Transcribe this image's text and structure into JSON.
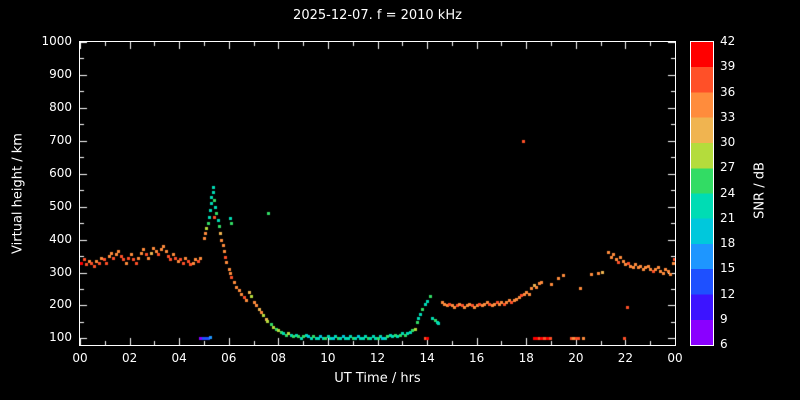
{
  "title": "2025-12-07. f = 2010 kHz",
  "x_axis": {
    "label": "UT Time / hrs",
    "hours": [
      0,
      2,
      4,
      6,
      8,
      10,
      12,
      14,
      16,
      18,
      20,
      22,
      24
    ],
    "tick_labels": [
      "00",
      "02",
      "04",
      "06",
      "08",
      "10",
      "12",
      "14",
      "16",
      "18",
      "20",
      "22",
      "00"
    ],
    "range": [
      0,
      24
    ]
  },
  "y_axis": {
    "label": "Virtual height / km",
    "tick_values": [
      100,
      200,
      300,
      400,
      500,
      600,
      700,
      800,
      900,
      1000
    ],
    "range": [
      80,
      1000
    ]
  },
  "colorbar": {
    "label": "SNR / dB",
    "levels": [
      6,
      9,
      12,
      15,
      18,
      21,
      24,
      27,
      30,
      33,
      36,
      39,
      42
    ],
    "colors": [
      "#8a00ff",
      "#3c14ff",
      "#1e50ff",
      "#1e96ff",
      "#00c8dc",
      "#00dcb4",
      "#32dc64",
      "#b4dc3c",
      "#f0b450",
      "#ff8c3c",
      "#ff5028",
      "#ff0000"
    ]
  },
  "chart_data": {
    "type": "scatter",
    "title": "2025-12-07. f = 2010 kHz",
    "xlabel": "UT Time / hrs",
    "ylabel": "Virtual height / km",
    "xlim": [
      0,
      24
    ],
    "ylim": [
      80,
      1000
    ],
    "legend": "colorbar SNR / dB, 6 to 42, right side",
    "grid": false,
    "point_format": "[ut_hours, virtual_height_km, snr_db]",
    "points": [
      [
        0.05,
        330,
        39
      ],
      [
        0.15,
        340,
        37
      ],
      [
        0.25,
        325,
        37
      ],
      [
        0.35,
        335,
        34
      ],
      [
        0.45,
        330,
        36
      ],
      [
        0.55,
        320,
        38
      ],
      [
        0.65,
        335,
        35
      ],
      [
        0.75,
        330,
        36
      ],
      [
        0.85,
        345,
        34
      ],
      [
        0.95,
        340,
        36
      ],
      [
        1.05,
        330,
        37
      ],
      [
        1.15,
        350,
        35
      ],
      [
        1.25,
        360,
        33
      ],
      [
        1.35,
        345,
        36
      ],
      [
        1.45,
        355,
        34
      ],
      [
        1.55,
        365,
        35
      ],
      [
        1.65,
        350,
        37
      ],
      [
        1.75,
        340,
        36
      ],
      [
        1.85,
        330,
        35
      ],
      [
        1.95,
        345,
        37
      ],
      [
        2.05,
        355,
        34
      ],
      [
        2.15,
        340,
        36
      ],
      [
        2.25,
        330,
        38
      ],
      [
        2.35,
        345,
        35
      ],
      [
        2.45,
        360,
        33
      ],
      [
        2.55,
        370,
        34
      ],
      [
        2.65,
        355,
        36
      ],
      [
        2.75,
        345,
        35
      ],
      [
        2.85,
        360,
        30
      ],
      [
        2.95,
        375,
        33
      ],
      [
        3.05,
        365,
        35
      ],
      [
        3.15,
        355,
        36
      ],
      [
        3.25,
        370,
        34
      ],
      [
        3.35,
        380,
        33
      ],
      [
        3.45,
        365,
        35
      ],
      [
        3.55,
        350,
        37
      ],
      [
        3.65,
        340,
        36
      ],
      [
        3.75,
        355,
        34
      ],
      [
        3.85,
        345,
        36
      ],
      [
        3.95,
        335,
        35
      ],
      [
        4.05,
        340,
        37
      ],
      [
        4.15,
        330,
        36
      ],
      [
        4.25,
        345,
        34
      ],
      [
        4.35,
        335,
        36
      ],
      [
        4.45,
        325,
        38
      ],
      [
        4.55,
        330,
        35
      ],
      [
        4.65,
        340,
        33
      ],
      [
        4.75,
        335,
        36
      ],
      [
        4.85,
        345,
        34
      ],
      [
        4.85,
        100,
        8
      ],
      [
        4.95,
        100,
        12
      ],
      [
        5.05,
        100,
        14
      ],
      [
        5.15,
        100,
        12
      ],
      [
        5.25,
        105,
        15
      ],
      [
        5.0,
        405,
        33
      ],
      [
        5.05,
        420,
        34
      ],
      [
        5.1,
        435,
        27
      ],
      [
        5.15,
        450,
        24
      ],
      [
        5.2,
        470,
        22
      ],
      [
        5.25,
        490,
        21
      ],
      [
        5.3,
        510,
        23
      ],
      [
        5.3,
        530,
        21
      ],
      [
        5.35,
        545,
        22
      ],
      [
        5.38,
        560,
        21
      ],
      [
        5.4,
        520,
        24
      ],
      [
        5.4,
        470,
        37
      ],
      [
        5.45,
        500,
        22
      ],
      [
        5.5,
        480,
        25
      ],
      [
        5.55,
        460,
        23
      ],
      [
        5.6,
        440,
        26
      ],
      [
        5.65,
        420,
        30
      ],
      [
        6.05,
        465,
        22
      ],
      [
        6.1,
        450,
        24
      ],
      [
        7.6,
        480,
        24
      ],
      [
        5.7,
        400,
        34
      ],
      [
        5.75,
        385,
        35
      ],
      [
        5.8,
        365,
        33
      ],
      [
        5.85,
        348,
        36
      ],
      [
        5.9,
        332,
        34
      ],
      [
        6.0,
        312,
        35
      ],
      [
        6.05,
        298,
        33
      ],
      [
        6.1,
        286,
        36
      ],
      [
        6.2,
        272,
        34
      ],
      [
        6.3,
        256,
        35
      ],
      [
        6.4,
        246,
        33
      ],
      [
        6.5,
        236,
        34
      ],
      [
        6.6,
        226,
        36
      ],
      [
        6.7,
        216,
        33
      ],
      [
        6.8,
        242,
        30
      ],
      [
        6.9,
        230,
        27
      ],
      [
        7.0,
        212,
        33
      ],
      [
        7.1,
        200,
        34
      ],
      [
        7.2,
        190,
        30
      ],
      [
        7.3,
        180,
        33
      ],
      [
        7.4,
        170,
        27
      ],
      [
        7.5,
        160,
        30
      ],
      [
        7.55,
        152,
        27
      ],
      [
        7.7,
        145,
        24
      ],
      [
        7.8,
        136,
        27
      ],
      [
        7.9,
        130,
        24
      ],
      [
        8.0,
        126,
        27
      ],
      [
        8.1,
        120,
        24
      ],
      [
        8.2,
        116,
        21
      ],
      [
        8.3,
        110,
        24
      ],
      [
        8.4,
        116,
        27
      ],
      [
        8.5,
        110,
        22
      ],
      [
        8.6,
        106,
        24
      ],
      [
        8.7,
        110,
        21
      ],
      [
        8.8,
        106,
        24
      ],
      [
        8.9,
        100,
        22
      ],
      [
        9.0,
        106,
        24
      ],
      [
        9.1,
        110,
        21
      ],
      [
        9.2,
        106,
        18
      ],
      [
        9.3,
        100,
        21
      ],
      [
        9.4,
        106,
        24
      ],
      [
        9.5,
        100,
        22
      ],
      [
        9.6,
        100,
        21
      ],
      [
        9.7,
        106,
        18
      ],
      [
        9.8,
        100,
        21
      ],
      [
        9.9,
        100,
        24
      ],
      [
        10.0,
        106,
        21
      ],
      [
        10.1,
        100,
        22
      ],
      [
        10.2,
        100,
        18
      ],
      [
        10.3,
        106,
        21
      ],
      [
        10.4,
        100,
        24
      ],
      [
        10.5,
        100,
        21
      ],
      [
        10.6,
        106,
        18
      ],
      [
        10.7,
        100,
        21
      ],
      [
        10.8,
        100,
        22
      ],
      [
        10.9,
        106,
        21
      ],
      [
        11.0,
        100,
        24
      ],
      [
        11.1,
        100,
        21
      ],
      [
        11.2,
        106,
        18
      ],
      [
        11.3,
        100,
        21
      ],
      [
        11.4,
        100,
        22
      ],
      [
        11.5,
        106,
        21
      ],
      [
        11.6,
        100,
        24
      ],
      [
        11.7,
        100,
        21
      ],
      [
        11.8,
        106,
        22
      ],
      [
        11.9,
        100,
        21
      ],
      [
        12.0,
        100,
        24
      ],
      [
        12.1,
        106,
        21
      ],
      [
        12.2,
        100,
        18
      ],
      [
        12.3,
        100,
        21
      ],
      [
        12.4,
        106,
        24
      ],
      [
        12.5,
        110,
        21
      ],
      [
        12.6,
        106,
        22
      ],
      [
        12.7,
        110,
        24
      ],
      [
        12.8,
        106,
        21
      ],
      [
        12.9,
        110,
        24
      ],
      [
        13.0,
        116,
        21
      ],
      [
        13.1,
        110,
        24
      ],
      [
        13.2,
        116,
        22
      ],
      [
        13.3,
        120,
        21
      ],
      [
        13.4,
        126,
        24
      ],
      [
        13.5,
        130,
        27
      ],
      [
        13.6,
        150,
        24
      ],
      [
        13.65,
        162,
        22
      ],
      [
        13.7,
        175,
        21
      ],
      [
        13.8,
        190,
        24
      ],
      [
        13.9,
        205,
        22
      ],
      [
        14.0,
        215,
        21
      ],
      [
        14.1,
        228,
        24
      ],
      [
        14.2,
        162,
        21
      ],
      [
        14.3,
        156,
        24
      ],
      [
        14.4,
        150,
        22
      ],
      [
        14.45,
        146,
        21
      ],
      [
        13.9,
        100,
        38
      ],
      [
        14.0,
        100,
        39
      ],
      [
        14.6,
        210,
        33
      ],
      [
        14.7,
        205,
        35
      ],
      [
        14.8,
        200,
        34
      ],
      [
        14.9,
        206,
        36
      ],
      [
        15.0,
        200,
        34
      ],
      [
        15.1,
        196,
        35
      ],
      [
        15.2,
        200,
        37
      ],
      [
        15.3,
        206,
        34
      ],
      [
        15.4,
        200,
        36
      ],
      [
        15.5,
        196,
        34
      ],
      [
        15.6,
        200,
        35
      ],
      [
        15.7,
        206,
        33
      ],
      [
        15.8,
        200,
        36
      ],
      [
        15.9,
        196,
        34
      ],
      [
        16.0,
        200,
        35
      ],
      [
        16.1,
        206,
        36
      ],
      [
        16.2,
        200,
        34
      ],
      [
        16.3,
        206,
        35
      ],
      [
        16.4,
        210,
        33
      ],
      [
        16.5,
        206,
        36
      ],
      [
        16.6,
        200,
        34
      ],
      [
        16.7,
        206,
        35
      ],
      [
        16.8,
        210,
        36
      ],
      [
        16.9,
        206,
        34
      ],
      [
        17.0,
        210,
        35
      ],
      [
        17.1,
        206,
        37
      ],
      [
        17.2,
        210,
        34
      ],
      [
        17.3,
        216,
        35
      ],
      [
        17.4,
        210,
        36
      ],
      [
        17.5,
        216,
        34
      ],
      [
        17.6,
        220,
        35
      ],
      [
        17.7,
        226,
        33
      ],
      [
        17.8,
        232,
        36
      ],
      [
        17.9,
        236,
        34
      ],
      [
        17.85,
        700,
        36
      ],
      [
        18.0,
        242,
        35
      ],
      [
        18.1,
        236,
        33
      ],
      [
        18.2,
        252,
        34
      ],
      [
        18.3,
        262,
        32
      ],
      [
        18.4,
        256,
        35
      ],
      [
        18.5,
        268,
        33
      ],
      [
        18.6,
        272,
        34
      ],
      [
        19.0,
        265,
        34
      ],
      [
        19.3,
        282,
        33
      ],
      [
        19.5,
        292,
        35
      ],
      [
        18.3,
        100,
        39
      ],
      [
        18.4,
        100,
        40
      ],
      [
        18.5,
        100,
        38
      ],
      [
        18.6,
        100,
        39
      ],
      [
        18.7,
        100,
        37
      ],
      [
        18.85,
        100,
        39
      ],
      [
        18.95,
        100,
        38
      ],
      [
        19.8,
        100,
        36
      ],
      [
        19.9,
        100,
        35
      ],
      [
        20.0,
        100,
        37
      ],
      [
        20.1,
        100,
        36
      ],
      [
        20.3,
        100,
        34
      ],
      [
        20.15,
        252,
        33
      ],
      [
        20.6,
        296,
        33
      ],
      [
        20.9,
        300,
        34
      ],
      [
        21.05,
        302,
        30
      ],
      [
        21.3,
        362,
        34
      ],
      [
        21.4,
        346,
        33
      ],
      [
        21.5,
        356,
        35
      ],
      [
        21.6,
        340,
        34
      ],
      [
        21.7,
        332,
        36
      ],
      [
        21.8,
        346,
        33
      ],
      [
        21.9,
        336,
        35
      ],
      [
        22.0,
        326,
        34
      ],
      [
        22.1,
        330,
        36
      ],
      [
        22.2,
        320,
        33
      ],
      [
        22.3,
        316,
        35
      ],
      [
        22.4,
        326,
        34
      ],
      [
        22.5,
        316,
        33
      ],
      [
        22.6,
        320,
        35
      ],
      [
        22.7,
        310,
        34
      ],
      [
        22.8,
        316,
        33
      ],
      [
        22.9,
        320,
        35
      ],
      [
        23.0,
        310,
        34
      ],
      [
        23.1,
        306,
        36
      ],
      [
        23.2,
        310,
        33
      ],
      [
        23.3,
        316,
        35
      ],
      [
        23.4,
        306,
        34
      ],
      [
        23.5,
        300,
        33
      ],
      [
        23.6,
        310,
        35
      ],
      [
        23.7,
        306,
        34
      ],
      [
        23.8,
        296,
        33
      ],
      [
        23.9,
        330,
        35
      ],
      [
        23.95,
        340,
        37
      ],
      [
        21.95,
        100,
        38
      ],
      [
        22.05,
        196,
        36
      ]
    ]
  }
}
